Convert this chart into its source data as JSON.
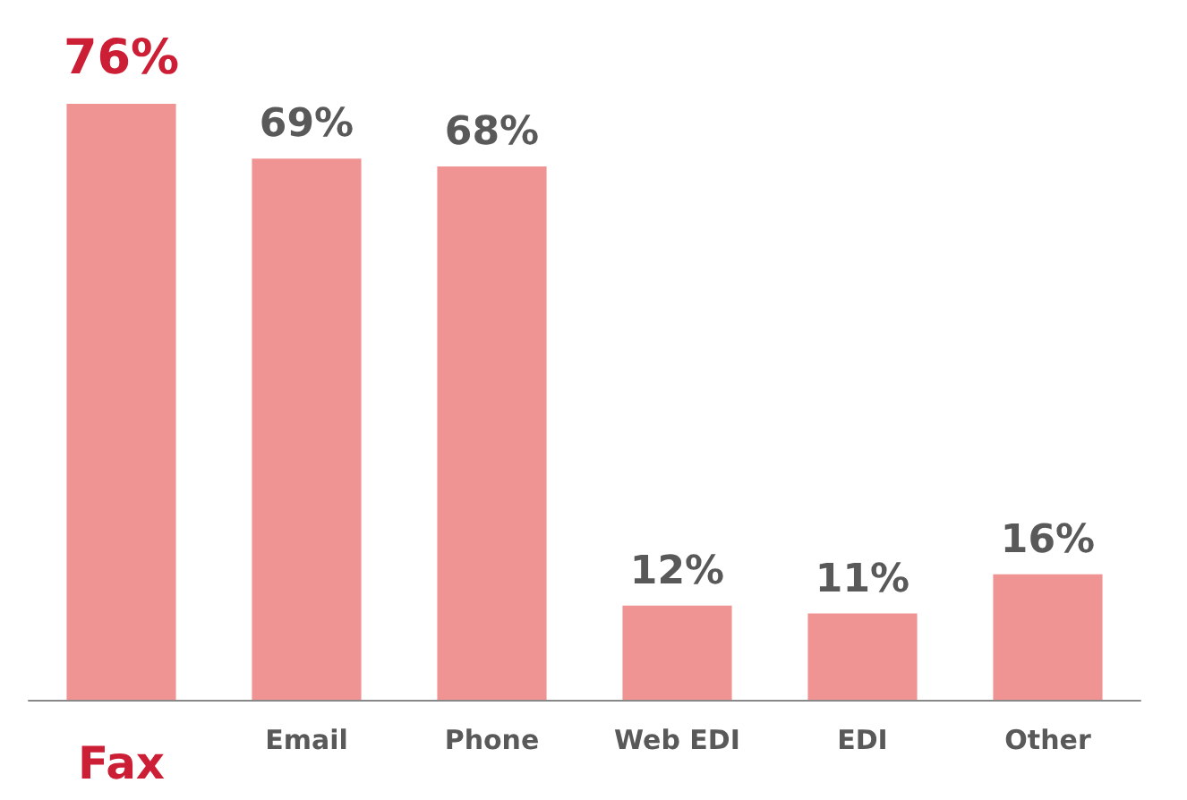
{
  "chart_data": {
    "type": "bar",
    "categories": [
      "Fax",
      "Email",
      "Phone",
      "Web EDI",
      "EDI",
      "Other"
    ],
    "values": [
      76,
      69,
      68,
      12,
      11,
      16
    ],
    "value_labels": [
      "76%",
      "69%",
      "68%",
      "12%",
      "11%",
      "16%"
    ],
    "color": "#f09393"
  }
}
